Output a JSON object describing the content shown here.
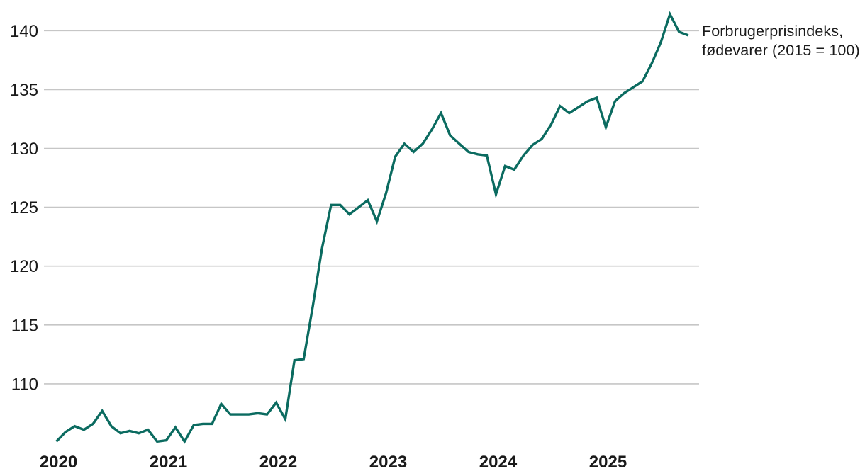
{
  "chart_data": {
    "type": "line",
    "title": "",
    "legend_label": "Forbrugerprisindeks, fødevarer (2015 = 100)",
    "legend_position": "right",
    "grid": "horizontal-only",
    "line_color": "#0b6b60",
    "grid_color": "#c6c6c6",
    "text_color": "#1a1a1a",
    "y_ticks": [
      110,
      115,
      120,
      125,
      130,
      135,
      140
    ],
    "ylim": [
      104.5,
      142
    ],
    "year_labels": [
      "2020",
      "2021",
      "2022",
      "2023",
      "2024",
      "2025"
    ],
    "x": [
      "2020-01",
      "2020-02",
      "2020-03",
      "2020-04",
      "2020-05",
      "2020-06",
      "2020-07",
      "2020-08",
      "2020-09",
      "2020-10",
      "2020-11",
      "2020-12",
      "2021-01",
      "2021-02",
      "2021-03",
      "2021-04",
      "2021-05",
      "2021-06",
      "2021-07",
      "2021-08",
      "2021-09",
      "2021-10",
      "2021-11",
      "2021-12",
      "2022-01",
      "2022-02",
      "2022-03",
      "2022-04",
      "2022-05",
      "2022-06",
      "2022-07",
      "2022-08",
      "2022-09",
      "2022-10",
      "2022-11",
      "2022-12",
      "2023-01",
      "2023-02",
      "2023-03",
      "2023-04",
      "2023-05",
      "2023-06",
      "2023-07",
      "2023-08",
      "2023-09",
      "2023-10",
      "2023-11",
      "2023-12",
      "2024-01",
      "2024-02",
      "2024-03",
      "2024-04",
      "2024-05",
      "2024-06",
      "2024-07",
      "2024-08",
      "2024-09",
      "2024-10",
      "2024-11",
      "2024-12",
      "2025-01",
      "2025-02",
      "2025-03",
      "2025-04",
      "2025-05",
      "2025-06",
      "2025-07",
      "2025-08",
      "2025-09",
      "2025-10"
    ],
    "values": [
      105.1,
      105.9,
      106.4,
      106.1,
      106.6,
      107.7,
      106.4,
      105.8,
      106.0,
      105.8,
      106.1,
      105.1,
      105.2,
      106.3,
      105.1,
      106.5,
      106.6,
      106.6,
      108.3,
      107.4,
      107.4,
      107.4,
      107.5,
      107.4,
      108.4,
      107.0,
      112.0,
      112.1,
      116.6,
      121.5,
      125.2,
      125.2,
      124.4,
      125.0,
      125.6,
      123.8,
      126.2,
      129.3,
      130.4,
      129.7,
      130.4,
      131.6,
      133.0,
      131.1,
      130.4,
      129.7,
      129.5,
      129.4,
      126.1,
      128.5,
      128.2,
      129.4,
      130.3,
      130.8,
      132.0,
      133.6,
      133.0,
      133.5,
      134.0,
      134.3,
      131.8,
      134.0,
      134.7,
      135.2,
      135.7,
      137.2,
      139.0,
      141.4,
      139.9,
      139.6
    ]
  }
}
